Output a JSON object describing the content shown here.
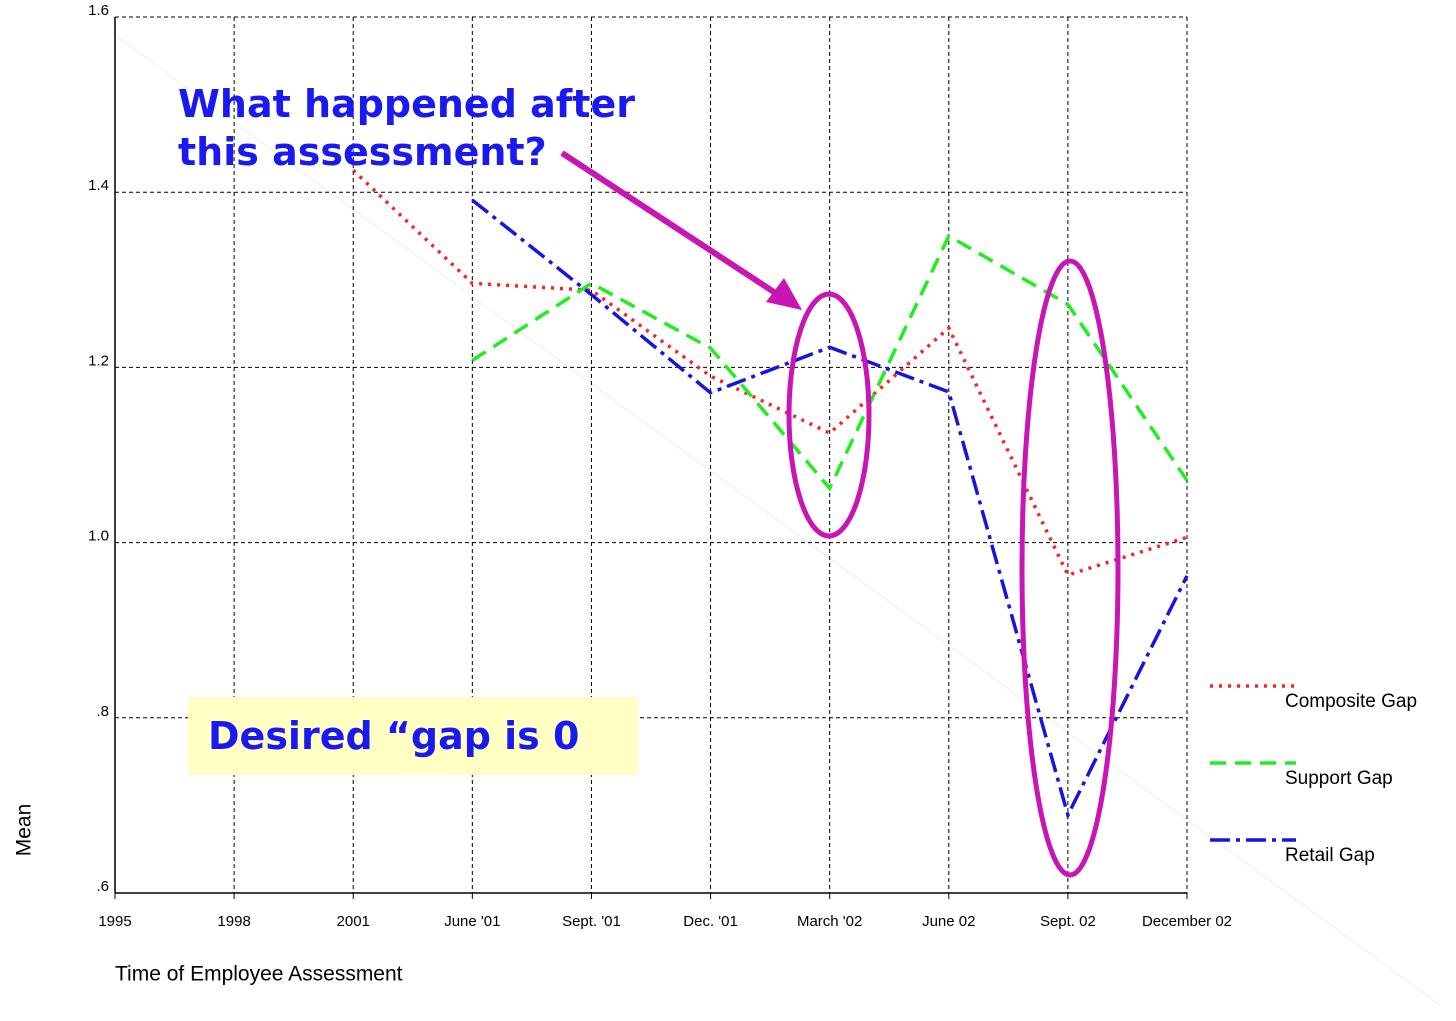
{
  "chart_data": {
    "type": "line",
    "categories": [
      "1995",
      "1998",
      "2001",
      "June '01",
      "Sept. '01",
      "Dec. '01",
      "March '02",
      "June 02",
      "Sept. 02",
      "December 02"
    ],
    "series": [
      {
        "name": "Composite Gap",
        "color": "#ff2020",
        "dash": "dotted",
        "values": [
          null,
          null,
          1.425,
          1.296,
          1.288,
          1.19,
          1.125,
          1.245,
          0.963,
          1.006
        ]
      },
      {
        "name": "Support Gap",
        "color": "#20ee20",
        "dash": "dashed",
        "values": [
          null,
          null,
          null,
          1.208,
          1.296,
          1.222,
          1.062,
          1.35,
          1.272,
          1.071
        ]
      },
      {
        "name": "Retail Gap",
        "color": "#1515e0",
        "dash": "dashdot",
        "values": [
          null,
          null,
          null,
          1.391,
          1.283,
          1.171,
          1.223,
          1.172,
          0.689,
          0.962
        ]
      }
    ],
    "ylim": [
      0.6,
      1.6
    ],
    "yticks": [
      {
        "value": 0.6,
        "label": ".6"
      },
      {
        "value": 0.8,
        "label": ".8"
      },
      {
        "value": 1.0,
        "label": "1.0"
      },
      1.2,
      1.4,
      1.6
    ],
    "ylabel": "Mean",
    "xlabel": "Time of Employee Assessment",
    "annotations": [
      "What happened after this assessment?",
      "Desired “gap is 0"
    ],
    "grid": true,
    "legend": "right"
  }
}
